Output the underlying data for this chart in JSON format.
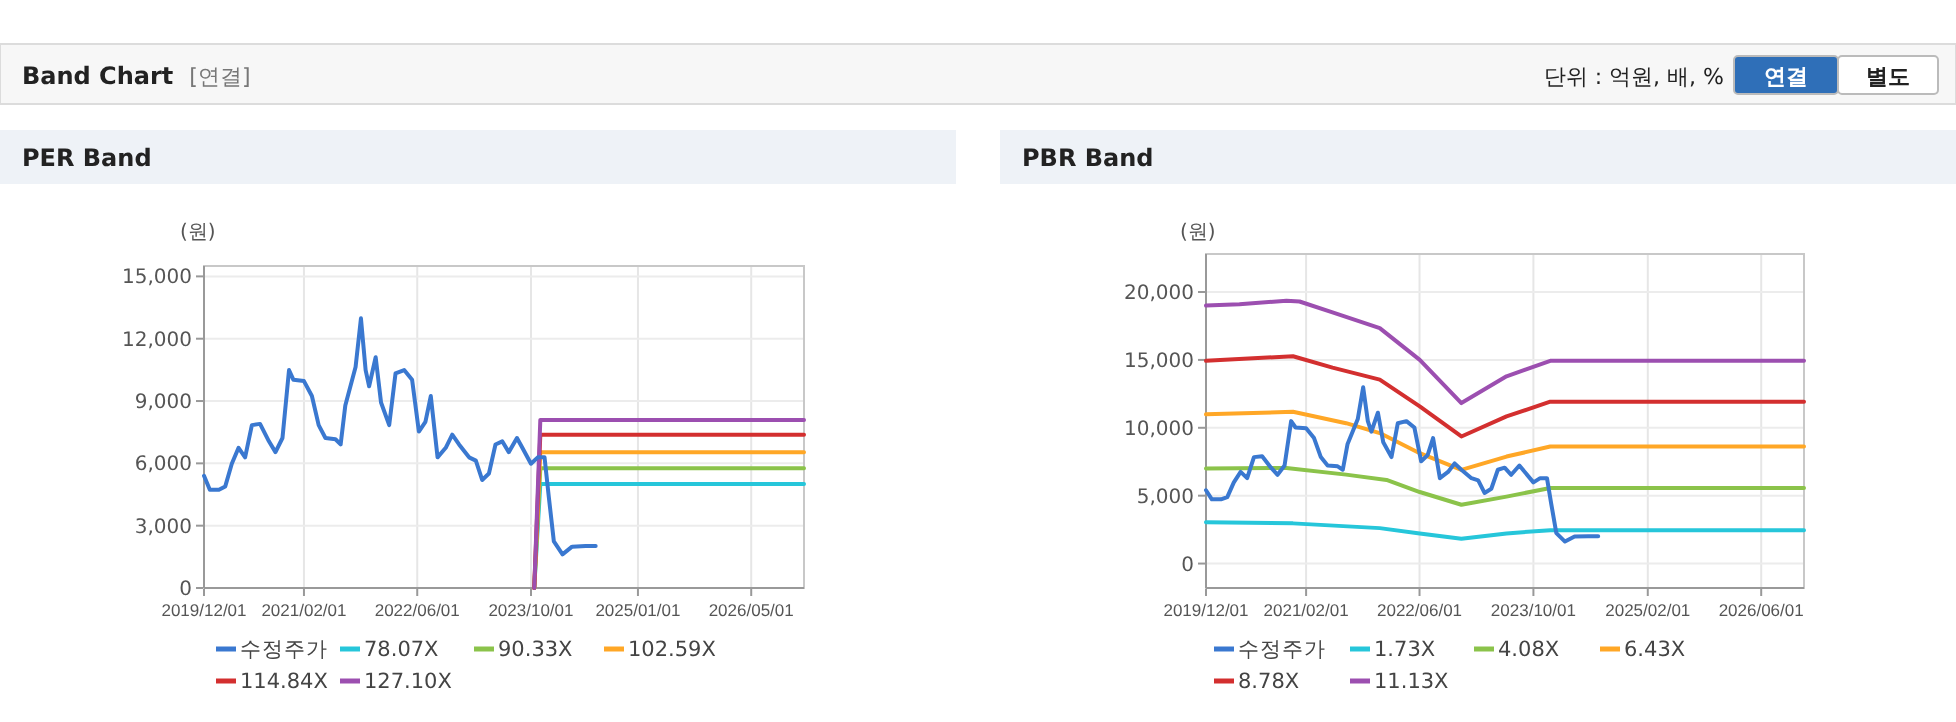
{
  "chart_data": [
    {
      "type": "other",
      "title": "Band Chart",
      "annotations": [
        "[연결]",
        "단위 : 억원, 배, %",
        "연결",
        "별도"
      ]
    },
    {
      "type": "line",
      "title": "PER Band",
      "ylabel": "(원)",
      "grid": true,
      "legend": "bottom",
      "xlim": [
        "2019-12-01",
        "2026-12-13"
      ],
      "ylim": [
        0,
        15500
      ],
      "xticks": [
        {
          "value": "2019-12-01",
          "label": "2019/12/01"
        },
        {
          "value": "2021-02-01",
          "label": "2021/02/01"
        },
        {
          "value": "2022-06-01",
          "label": "2022/06/01"
        },
        {
          "value": "2023-10-01",
          "label": "2023/10/01"
        },
        {
          "value": "2025-01-01",
          "label": "2025/01/01"
        },
        {
          "value": "2026-05-01",
          "label": "2026/05/01"
        }
      ],
      "yticks": [
        0,
        {
          "value": 3000,
          "label": "3,000"
        },
        {
          "value": 6000,
          "label": "6,000"
        },
        {
          "value": 9000,
          "label": "9,000"
        },
        {
          "value": 12000,
          "label": "12,000"
        },
        {
          "value": 15000,
          "label": "15,000"
        }
      ],
      "series": [
        {
          "name": "수정주가",
          "color": "#3a78d0",
          "x": [
            "2019-12-01",
            "2019-12-26",
            "2020-02-03",
            "2020-03-01",
            "2020-03-29",
            "2020-04-27",
            "2020-05-25",
            "2020-06-23",
            "2020-07-28",
            "2020-09-04",
            "2020-10-02",
            "2020-11-01",
            "2020-11-29",
            "2020-12-18",
            "2021-02-01",
            "2021-03-07",
            "2021-04-05",
            "2021-05-04",
            "2021-06-16",
            "2021-07-08",
            "2021-07-28",
            "2021-09-10",
            "2021-10-03",
            "2021-10-23",
            "2021-11-07",
            "2021-12-05",
            "2021-12-28",
            "2022-02-01",
            "2022-02-28",
            "2022-04-06",
            "2022-05-10",
            "2022-06-08",
            "2022-07-06",
            "2022-07-29",
            "2022-08-27",
            "2022-10-01",
            "2022-10-29",
            "2022-11-27",
            "2023-01-09",
            "2023-02-07",
            "2023-03-06",
            "2023-04-04",
            "2023-05-02",
            "2023-05-31",
            "2023-06-28",
            "2023-08-02",
            "2023-08-25",
            "2023-10-01",
            "2023-10-30",
            "2023-11-28",
            "2023-12-16",
            "2024-01-07",
            "2024-02-13",
            "2024-03-25",
            "2024-05-22",
            "2024-07-04"
          ],
          "values": [
            5400,
            4730,
            4730,
            4890,
            5980,
            6750,
            6290,
            7840,
            7900,
            7060,
            6540,
            7220,
            10490,
            10020,
            9960,
            9240,
            7840,
            7220,
            7160,
            6910,
            8780,
            10640,
            12980,
            10490,
            9710,
            11110,
            8930,
            7840,
            10330,
            10490,
            10020,
            7530,
            8000,
            9240,
            6290,
            6750,
            7380,
            6910,
            6290,
            6130,
            5200,
            5510,
            6910,
            7060,
            6540,
            7220,
            6750,
            5980,
            6290,
            6290,
            4420,
            2240,
            1620,
            1990,
            2020,
            2020
          ]
        },
        {
          "name": "78.07X",
          "color": "#26c6da",
          "x": [
            "2023-10-15",
            "2023-11-10",
            "2026-12-13"
          ],
          "values": [
            0,
            5010,
            5010
          ]
        },
        {
          "name": "90.33X",
          "color": "#8bc34a",
          "x": [
            "2023-10-15",
            "2023-11-10",
            "2026-12-13"
          ],
          "values": [
            0,
            5760,
            5760
          ]
        },
        {
          "name": "102.59X",
          "color": "#ffa726",
          "x": [
            "2023-10-15",
            "2023-11-10",
            "2026-12-13"
          ],
          "values": [
            0,
            6540,
            6540
          ]
        },
        {
          "name": "114.84X",
          "color": "#d32f2f",
          "x": [
            "2023-10-15",
            "2023-11-10",
            "2026-12-13"
          ],
          "values": [
            0,
            7380,
            7380
          ]
        },
        {
          "name": "127.10X",
          "color": "#9c4fb0",
          "x": [
            "2023-10-15",
            "2023-11-10",
            "2026-12-13"
          ],
          "values": [
            0,
            8090,
            8090
          ]
        }
      ]
    },
    {
      "type": "line",
      "title": "PBR Band",
      "ylabel": "(원)",
      "grid": true,
      "legend": "bottom",
      "xlim": [
        "2019-12-01",
        "2026-12-01"
      ],
      "ylim": [
        -1800,
        22800
      ],
      "xticks": [
        {
          "value": "2019-12-01",
          "label": "2019/12/01"
        },
        {
          "value": "2021-02-01",
          "label": "2021/02/01"
        },
        {
          "value": "2022-06-01",
          "label": "2022/06/01"
        },
        {
          "value": "2023-10-01",
          "label": "2023/10/01"
        },
        {
          "value": "2025-02-01",
          "label": "2025/02/01"
        },
        {
          "value": "2026-06-01",
          "label": "2026/06/01"
        }
      ],
      "yticks": [
        0,
        {
          "value": 5000,
          "label": "5,000"
        },
        {
          "value": 10000,
          "label": "10,000"
        },
        {
          "value": 15000,
          "label": "15,000"
        },
        {
          "value": 20000,
          "label": "20,000"
        }
      ],
      "series": [
        {
          "name": "수정주가",
          "color": "#3a78d0",
          "x": [
            "2019-12-01",
            "2019-12-26",
            "2020-02-03",
            "2020-03-01",
            "2020-03-29",
            "2020-04-27",
            "2020-05-25",
            "2020-06-23",
            "2020-07-28",
            "2020-09-04",
            "2020-10-02",
            "2020-11-01",
            "2020-11-29",
            "2020-12-18",
            "2021-02-01",
            "2021-03-07",
            "2021-04-05",
            "2021-05-04",
            "2021-06-16",
            "2021-07-08",
            "2021-07-28",
            "2021-09-10",
            "2021-10-03",
            "2021-10-23",
            "2021-11-07",
            "2021-12-05",
            "2021-12-28",
            "2022-02-01",
            "2022-02-28",
            "2022-04-06",
            "2022-05-10",
            "2022-06-08",
            "2022-07-06",
            "2022-07-29",
            "2022-08-27",
            "2022-10-01",
            "2022-10-29",
            "2022-11-27",
            "2023-01-09",
            "2023-02-07",
            "2023-03-06",
            "2023-04-04",
            "2023-05-02",
            "2023-05-31",
            "2023-06-28",
            "2023-08-02",
            "2023-08-25",
            "2023-10-01",
            "2023-10-30",
            "2023-11-28",
            "2023-12-16",
            "2024-01-07",
            "2024-02-13",
            "2024-03-25",
            "2024-05-22",
            "2024-07-04"
          ],
          "values": [
            5400,
            4730,
            4730,
            4890,
            5980,
            6750,
            6290,
            7840,
            7900,
            7060,
            6540,
            7220,
            10490,
            10020,
            9960,
            9240,
            7840,
            7220,
            7160,
            6910,
            8780,
            10640,
            12980,
            10490,
            9710,
            11110,
            8930,
            7840,
            10330,
            10490,
            10020,
            7530,
            8000,
            9240,
            6290,
            6750,
            7380,
            6910,
            6290,
            6130,
            5200,
            5510,
            6910,
            7060,
            6540,
            7220,
            6750,
            5980,
            6290,
            6290,
            4420,
            2240,
            1620,
            1990,
            2020,
            2020
          ]
        },
        {
          "name": "1.73X",
          "color": "#26c6da",
          "x": [
            "2019-12-01",
            "2020-12-07",
            "2021-12-13",
            "2022-06-02",
            "2022-11-27",
            "2023-06-08",
            "2023-12-12",
            "2026-12-01"
          ],
          "values": [
            3050,
            2960,
            2610,
            2220,
            1820,
            2220,
            2460,
            2460
          ]
        },
        {
          "name": "4.08X",
          "color": "#8bc34a",
          "x": [
            "2019-12-01",
            "2020-11-09",
            "2021-07-22",
            "2022-01-11",
            "2022-06-02",
            "2022-11-27",
            "2023-06-08",
            "2023-12-12",
            "2026-12-01"
          ],
          "values": [
            7000,
            7040,
            6550,
            6160,
            5270,
            4330,
            4930,
            5570,
            5570
          ]
        },
        {
          "name": "6.43X",
          "color": "#ffa726",
          "x": [
            "2019-12-01",
            "2020-12-07",
            "2021-07-22",
            "2021-12-13",
            "2022-06-02",
            "2022-11-27",
            "2023-06-08",
            "2023-12-12",
            "2026-12-01"
          ],
          "values": [
            10990,
            11180,
            10340,
            9610,
            8130,
            6900,
            7880,
            8620,
            8620
          ]
        },
        {
          "name": "8.78X",
          "color": "#d32f2f",
          "x": [
            "2019-12-01",
            "2020-12-07",
            "2021-05-25",
            "2021-12-13",
            "2022-06-02",
            "2022-11-27",
            "2023-06-08",
            "2023-12-12",
            "2026-12-01"
          ],
          "values": [
            14930,
            15270,
            14430,
            13550,
            11580,
            9360,
            10840,
            11920,
            11920
          ]
        },
        {
          "name": "11.13X",
          "color": "#9c4fb0",
          "x": [
            "2019-12-01",
            "2020-04-22",
            "2020-11-09",
            "2021-01-04",
            "2021-05-25",
            "2021-12-13",
            "2022-06-02",
            "2022-11-27",
            "2023-06-08",
            "2023-12-12",
            "2026-12-01"
          ],
          "values": [
            19000,
            19100,
            19360,
            19300,
            18500,
            17340,
            15000,
            11820,
            13790,
            14930,
            14930
          ]
        }
      ]
    }
  ]
}
